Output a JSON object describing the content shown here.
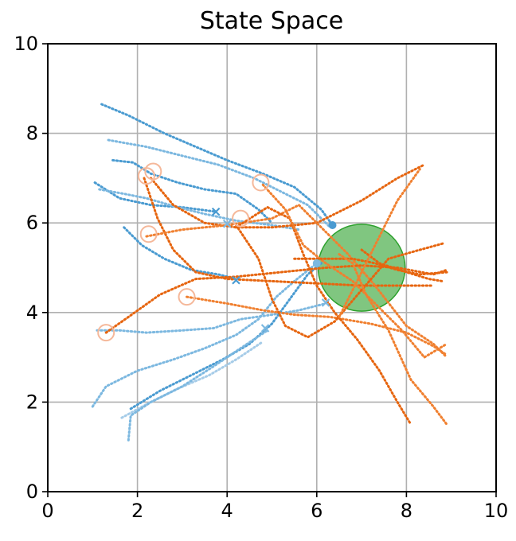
{
  "chart_data": {
    "type": "line",
    "title": "State Space",
    "xlabel": "",
    "ylabel": "",
    "xlim": [
      0,
      10
    ],
    "ylim": [
      0,
      10
    ],
    "grid": true,
    "xticks": [
      "0",
      "2",
      "4",
      "6",
      "8",
      "10"
    ],
    "yticks": [
      "0",
      "2",
      "4",
      "6",
      "8",
      "10"
    ],
    "goal": {
      "center": [
        7.0,
        5.0
      ],
      "radius": 0.97,
      "color": "#2ca02c"
    },
    "series": [
      {
        "group": "blue",
        "color": "#4a9bd1",
        "points": [
          [
            1.2,
            8.65
          ],
          [
            1.8,
            8.4
          ],
          [
            2.6,
            8.0
          ],
          [
            3.3,
            7.7
          ],
          [
            4.0,
            7.4
          ],
          [
            4.8,
            7.1
          ],
          [
            5.5,
            6.8
          ],
          [
            6.1,
            6.3
          ],
          [
            6.35,
            5.95
          ]
        ]
      },
      {
        "group": "blue",
        "color": "#7cb8e0",
        "points": [
          [
            1.35,
            7.85
          ],
          [
            2.2,
            7.7
          ],
          [
            3.0,
            7.5
          ],
          [
            3.8,
            7.3
          ],
          [
            4.6,
            7.0
          ],
          [
            5.2,
            6.7
          ],
          [
            5.8,
            6.4
          ],
          [
            6.3,
            5.9
          ]
        ]
      },
      {
        "group": "blue",
        "color": "#4a9bd1",
        "points": [
          [
            1.45,
            7.4
          ],
          [
            1.9,
            7.35
          ],
          [
            2.3,
            7.1
          ],
          [
            2.9,
            6.9
          ],
          [
            3.5,
            6.75
          ],
          [
            4.2,
            6.65
          ],
          [
            4.7,
            6.3
          ],
          [
            5.0,
            6.0
          ]
        ]
      },
      {
        "group": "blue",
        "color": "#4a9bd1",
        "points": [
          [
            1.05,
            6.9
          ],
          [
            1.6,
            6.55
          ],
          [
            2.3,
            6.4
          ],
          [
            3.0,
            6.35
          ],
          [
            3.75,
            6.25
          ]
        ]
      },
      {
        "group": "blue",
        "color": "#7cb8e0",
        "points": [
          [
            1.15,
            6.75
          ],
          [
            1.7,
            6.65
          ],
          [
            2.2,
            6.55
          ],
          [
            2.9,
            6.35
          ],
          [
            3.5,
            6.2
          ],
          [
            4.2,
            6.05
          ],
          [
            5.0,
            5.95
          ],
          [
            5.6,
            5.85
          ]
        ]
      },
      {
        "group": "blue",
        "color": "#4a9bd1",
        "points": [
          [
            1.7,
            5.9
          ],
          [
            2.1,
            5.5
          ],
          [
            2.6,
            5.2
          ],
          [
            3.2,
            4.95
          ],
          [
            3.8,
            4.85
          ],
          [
            4.2,
            4.75
          ]
        ]
      },
      {
        "group": "blue",
        "color": "#7cb8e0",
        "points": [
          [
            1.1,
            3.6
          ],
          [
            1.6,
            3.6
          ],
          [
            2.2,
            3.55
          ],
          [
            3.0,
            3.6
          ],
          [
            3.7,
            3.65
          ],
          [
            4.3,
            3.85
          ],
          [
            5.0,
            3.95
          ],
          [
            5.6,
            4.05
          ],
          [
            6.2,
            4.2
          ]
        ]
      },
      {
        "group": "blue",
        "color": "#7cb8e0",
        "points": [
          [
            1.0,
            1.9
          ],
          [
            1.3,
            2.35
          ],
          [
            2.0,
            2.7
          ],
          [
            2.8,
            2.95
          ],
          [
            3.5,
            3.2
          ],
          [
            4.2,
            3.5
          ],
          [
            4.7,
            3.85
          ],
          [
            5.1,
            4.35
          ],
          [
            5.5,
            4.7
          ],
          [
            6.0,
            5.1
          ]
        ]
      },
      {
        "group": "blue",
        "color": "#4a9bd1",
        "points": [
          [
            1.85,
            1.85
          ],
          [
            2.5,
            2.25
          ],
          [
            3.2,
            2.6
          ],
          [
            3.9,
            2.95
          ],
          [
            4.5,
            3.3
          ],
          [
            5.0,
            3.75
          ],
          [
            5.4,
            4.3
          ],
          [
            5.8,
            4.85
          ],
          [
            6.1,
            5.1
          ]
        ]
      },
      {
        "group": "blue",
        "color": "#a6cce8",
        "points": [
          [
            1.65,
            1.65
          ],
          [
            2.2,
            1.95
          ],
          [
            2.9,
            2.3
          ],
          [
            3.6,
            2.6
          ],
          [
            4.2,
            2.95
          ],
          [
            4.8,
            3.35
          ]
        ]
      },
      {
        "group": "blue",
        "color": "#7cb8e0",
        "points": [
          [
            1.8,
            1.15
          ],
          [
            1.85,
            1.7
          ],
          [
            2.3,
            2.0
          ],
          [
            3.0,
            2.35
          ],
          [
            3.7,
            2.8
          ],
          [
            4.3,
            3.2
          ],
          [
            4.9,
            3.6
          ]
        ]
      },
      {
        "group": "orange",
        "color": "#e6650f",
        "points": [
          [
            2.15,
            7.0
          ],
          [
            2.45,
            6.1
          ],
          [
            2.8,
            5.4
          ],
          [
            3.3,
            4.9
          ],
          [
            4.0,
            4.75
          ],
          [
            5.0,
            4.7
          ],
          [
            6.0,
            4.65
          ],
          [
            7.0,
            4.6
          ],
          [
            8.0,
            4.6
          ],
          [
            8.6,
            4.6
          ]
        ]
      },
      {
        "group": "orange",
        "color": "#e6650f",
        "points": [
          [
            2.3,
            7.0
          ],
          [
            2.8,
            6.4
          ],
          [
            3.5,
            6.0
          ],
          [
            4.2,
            5.9
          ],
          [
            5.0,
            5.9
          ],
          [
            6.0,
            6.0
          ],
          [
            7.0,
            6.5
          ],
          [
            7.8,
            7.0
          ],
          [
            8.4,
            7.3
          ]
        ]
      },
      {
        "group": "orange",
        "color": "#f08030",
        "points": [
          [
            2.2,
            5.7
          ],
          [
            3.0,
            5.85
          ],
          [
            4.0,
            5.95
          ],
          [
            5.0,
            6.1
          ],
          [
            5.6,
            6.4
          ],
          [
            6.2,
            5.8
          ],
          [
            6.7,
            5.3
          ],
          [
            7.3,
            4.6
          ],
          [
            8.0,
            3.7
          ],
          [
            8.6,
            3.3
          ],
          [
            8.9,
            3.0
          ]
        ]
      },
      {
        "group": "orange",
        "color": "#e6650f",
        "points": [
          [
            1.3,
            3.55
          ],
          [
            1.8,
            3.9
          ],
          [
            2.5,
            4.4
          ],
          [
            3.3,
            4.75
          ],
          [
            4.2,
            4.8
          ],
          [
            5.2,
            4.9
          ],
          [
            6.2,
            5.0
          ],
          [
            7.0,
            5.05
          ],
          [
            7.8,
            5.0
          ],
          [
            8.6,
            4.85
          ],
          [
            8.9,
            4.95
          ]
        ]
      },
      {
        "group": "orange",
        "color": "#f08030",
        "points": [
          [
            3.1,
            4.35
          ],
          [
            4.0,
            4.2
          ],
          [
            4.8,
            4.05
          ],
          [
            5.5,
            3.95
          ],
          [
            6.3,
            3.9
          ],
          [
            7.2,
            3.75
          ],
          [
            8.0,
            3.55
          ],
          [
            8.6,
            3.25
          ],
          [
            8.9,
            3.05
          ]
        ]
      },
      {
        "group": "orange",
        "color": "#e6650f",
        "points": [
          [
            4.2,
            5.9
          ],
          [
            4.9,
            6.35
          ],
          [
            5.4,
            6.1
          ],
          [
            5.7,
            5.3
          ],
          [
            6.0,
            4.6
          ],
          [
            6.4,
            4.0
          ],
          [
            6.9,
            3.4
          ],
          [
            7.4,
            2.7
          ],
          [
            7.8,
            2.0
          ],
          [
            8.1,
            1.5
          ]
        ]
      },
      {
        "group": "orange",
        "color": "#f08030",
        "points": [
          [
            4.8,
            6.85
          ],
          [
            5.3,
            6.3
          ],
          [
            5.7,
            5.5
          ],
          [
            6.2,
            5.1
          ],
          [
            6.8,
            4.7
          ],
          [
            7.3,
            4.2
          ],
          [
            7.9,
            3.6
          ],
          [
            8.4,
            3.0
          ],
          [
            8.9,
            3.3
          ]
        ]
      },
      {
        "group": "orange",
        "color": "#e6650f",
        "points": [
          [
            4.2,
            5.95
          ],
          [
            4.7,
            5.2
          ],
          [
            5.0,
            4.3
          ],
          [
            5.3,
            3.7
          ],
          [
            5.8,
            3.45
          ],
          [
            6.4,
            3.8
          ],
          [
            7.0,
            4.5
          ],
          [
            7.6,
            5.2
          ],
          [
            8.3,
            5.4
          ],
          [
            8.85,
            5.55
          ]
        ]
      },
      {
        "group": "orange",
        "color": "#e6650f",
        "points": [
          [
            5.5,
            5.2
          ],
          [
            6.2,
            5.2
          ],
          [
            6.8,
            5.2
          ],
          [
            7.3,
            5.1
          ],
          [
            7.8,
            4.95
          ],
          [
            8.3,
            4.85
          ],
          [
            8.9,
            4.9
          ]
        ]
      },
      {
        "group": "orange",
        "color": "#f08030",
        "points": [
          [
            6.5,
            5.3
          ],
          [
            6.8,
            5.1
          ],
          [
            7.1,
            4.4
          ],
          [
            7.6,
            3.6
          ],
          [
            8.1,
            2.5
          ],
          [
            8.6,
            1.9
          ],
          [
            8.9,
            1.5
          ]
        ]
      },
      {
        "group": "orange",
        "color": "#e6650f",
        "points": [
          [
            7.0,
            5.4
          ],
          [
            7.4,
            5.1
          ],
          [
            8.0,
            4.9
          ],
          [
            8.5,
            4.75
          ],
          [
            8.8,
            4.7
          ]
        ]
      },
      {
        "group": "orange",
        "color": "#f08030",
        "points": [
          [
            6.5,
            3.9
          ],
          [
            6.9,
            4.7
          ],
          [
            7.3,
            5.5
          ],
          [
            7.8,
            6.5
          ],
          [
            8.3,
            7.2
          ]
        ]
      }
    ],
    "start_markers": [
      {
        "x": 2.2,
        "y": 7.05,
        "color": "#f5b89a"
      },
      {
        "x": 2.35,
        "y": 7.15,
        "color": "#f5b89a"
      },
      {
        "x": 4.75,
        "y": 6.9,
        "color": "#f5b89a"
      },
      {
        "x": 4.3,
        "y": 6.1,
        "color": "#f5b89a"
      },
      {
        "x": 2.25,
        "y": 5.75,
        "color": "#f5b89a"
      },
      {
        "x": 3.1,
        "y": 4.35,
        "color": "#f5b89a"
      },
      {
        "x": 1.3,
        "y": 3.55,
        "color": "#f5b89a"
      }
    ],
    "x_markers": [
      {
        "x": 3.75,
        "y": 6.25,
        "color": "#4a9bd1"
      },
      {
        "x": 4.0,
        "y": 5.98,
        "color": "#7cb8e0"
      },
      {
        "x": 4.2,
        "y": 4.72,
        "color": "#4a9bd1"
      },
      {
        "x": 4.85,
        "y": 3.65,
        "color": "#7cb8e0"
      },
      {
        "x": 6.2,
        "y": 4.22,
        "color": "#7cb8e0"
      }
    ],
    "dot_markers": [
      {
        "x": 6.35,
        "y": 5.95,
        "color": "#4a9bd1"
      },
      {
        "x": 6.0,
        "y": 5.1,
        "color": "#7cb8e0"
      }
    ]
  }
}
